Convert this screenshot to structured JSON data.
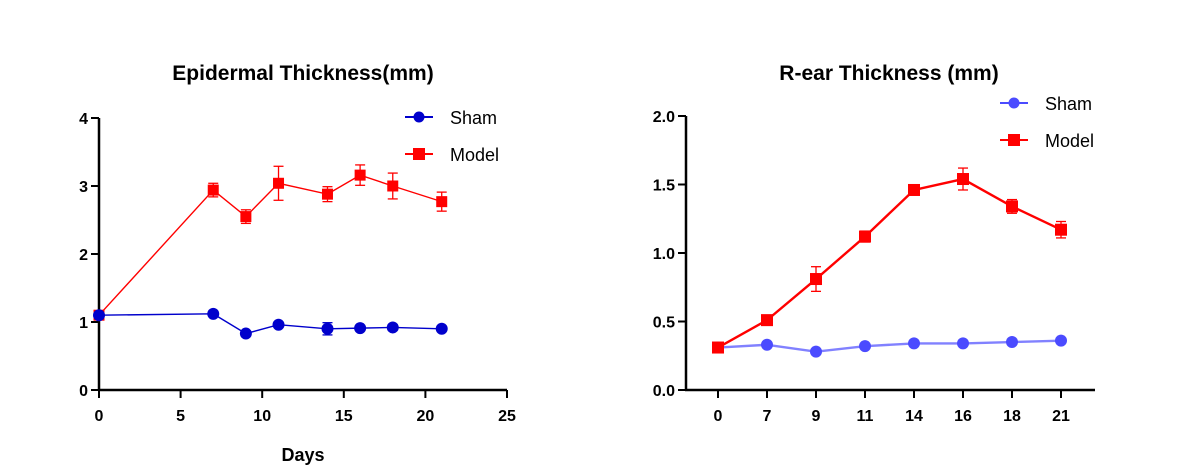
{
  "chart_data": [
    {
      "type": "line",
      "title": "Epidermal Thickness(mm)",
      "xlabel": "Days",
      "ylabel": "",
      "xlim": [
        0,
        25
      ],
      "ylim": [
        0,
        4
      ],
      "xticks": [
        0,
        5,
        10,
        15,
        20,
        25
      ],
      "yticks": [
        0,
        1,
        2,
        3,
        4
      ],
      "xtick_labels": [
        "0",
        "5",
        "10",
        "15",
        "20",
        "25"
      ],
      "ytick_labels": [
        "0",
        "1",
        "2",
        "3",
        "4"
      ],
      "legend": "top-right",
      "grid": false,
      "x": [
        0,
        7,
        9,
        11,
        14,
        16,
        18,
        21
      ],
      "series": [
        {
          "name": "Sham",
          "color": "#0000CC",
          "marker": "circle",
          "values": [
            1.1,
            1.12,
            0.83,
            0.96,
            0.9,
            0.91,
            0.92,
            0.9
          ],
          "errors": [
            0.02,
            0.02,
            0.03,
            0.03,
            0.09,
            0.03,
            0.03,
            0.03
          ]
        },
        {
          "name": "Model",
          "color": "#FF0000",
          "marker": "square",
          "values": [
            1.1,
            2.94,
            2.55,
            3.04,
            2.88,
            3.16,
            3.0,
            2.77
          ],
          "errors": [
            0.02,
            0.1,
            0.1,
            0.25,
            0.11,
            0.15,
            0.19,
            0.14
          ]
        }
      ]
    },
    {
      "type": "line",
      "title": "R-ear Thickness (mm)",
      "xlabel": "",
      "ylabel": "",
      "ylim": [
        0,
        2.0
      ],
      "categories": [
        "0",
        "7",
        "9",
        "11",
        "14",
        "16",
        "18",
        "21"
      ],
      "yticks": [
        0.0,
        0.5,
        1.0,
        1.5,
        2.0
      ],
      "ytick_labels": [
        "0.0",
        "0.5",
        "1.0",
        "1.5",
        "2.0"
      ],
      "legend": "top-right",
      "grid": false,
      "series": [
        {
          "name": "Sham",
          "color": "#4B4BFF",
          "marker": "circle",
          "values": [
            0.31,
            0.33,
            0.28,
            0.32,
            0.34,
            0.34,
            0.35,
            0.36
          ],
          "errors": [
            0.01,
            0.01,
            0.01,
            0.01,
            0.01,
            0.01,
            0.01,
            0.01
          ]
        },
        {
          "name": "Model",
          "color": "#FF0000",
          "marker": "square",
          "values": [
            0.31,
            0.51,
            0.81,
            1.12,
            1.46,
            1.54,
            1.34,
            1.17
          ],
          "errors": [
            0.02,
            0.02,
            0.09,
            0.04,
            0.03,
            0.08,
            0.05,
            0.06
          ]
        }
      ]
    }
  ]
}
